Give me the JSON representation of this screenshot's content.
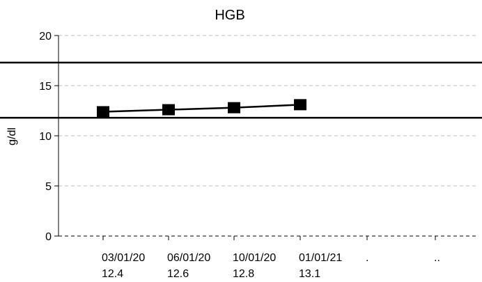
{
  "chart_data": {
    "type": "line",
    "title": "HGB",
    "ylabel": "g/dl",
    "xlabel": "",
    "ylim": [
      0,
      20
    ],
    "yticks": [
      "0",
      "5",
      "10",
      "15",
      "20"
    ],
    "grid": true,
    "categories": [
      "03/01/20",
      "06/01/20",
      "10/01/20",
      "01/01/21",
      ".",
      ".."
    ],
    "value_labels": [
      "12.4",
      "12.6",
      "12.8",
      "13.1",
      "",
      ""
    ],
    "series": [
      {
        "values": [
          12.4,
          12.6,
          12.8,
          13.1,
          null,
          null
        ],
        "color": "#000000"
      }
    ],
    "reference_lines": [
      17.3,
      11.8
    ],
    "colors": {
      "line": "#000000",
      "grid": "#bdbdbd",
      "axis": "#000000"
    }
  }
}
